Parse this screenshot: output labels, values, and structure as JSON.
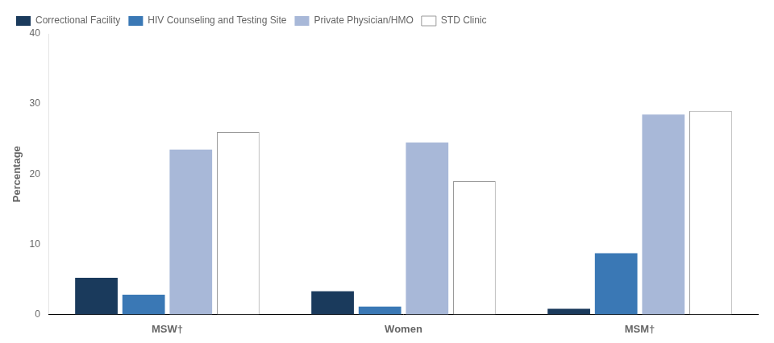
{
  "chart_data": {
    "type": "bar",
    "categories": [
      "MSW†",
      "Women",
      "MSM†"
    ],
    "series": [
      {
        "name": "Correctional Facility",
        "color": "#1a3a5c",
        "values": [
          5.2,
          3.3,
          0.8
        ]
      },
      {
        "name": "HIV Counseling and Testing Site",
        "color": "#3a78b5",
        "values": [
          2.8,
          1.1,
          8.7
        ]
      },
      {
        "name": "Private Physician/HMO",
        "color": "#a8b8d8",
        "values": [
          23.5,
          24.5,
          28.5
        ]
      },
      {
        "name": "STD Clinic",
        "color": "#ffffff",
        "values": [
          26.0,
          19.0,
          29.0
        ]
      }
    ],
    "ylabel": "Percentage",
    "ylim": [
      0,
      40
    ],
    "yticks": [
      0,
      10,
      20,
      30,
      40
    ],
    "grid": false,
    "legend": "upper left"
  }
}
